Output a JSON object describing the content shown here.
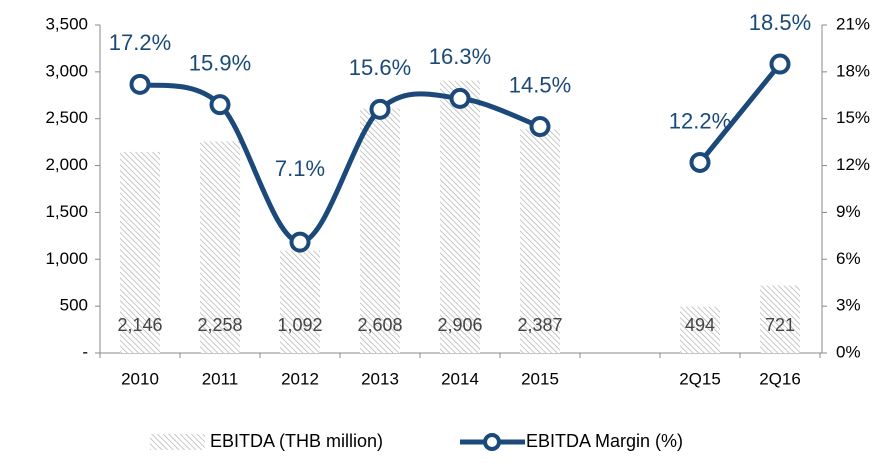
{
  "chart_data": {
    "type": "bar-line",
    "categories": [
      "2010",
      "2011",
      "2012",
      "2013",
      "2014",
      "2015",
      null,
      "2Q15",
      "2Q16"
    ],
    "series": [
      {
        "name": "EBITDA (THB million)",
        "type": "bar",
        "color": "#b0b0b0",
        "values": [
          2146,
          2258,
          1092,
          2608,
          2906,
          2387,
          null,
          494,
          721
        ],
        "value_labels": [
          "2,146",
          "2,258",
          "1,092",
          "2,608",
          "2,906",
          "2,387",
          null,
          "494",
          "721"
        ]
      },
      {
        "name": "EBITDA Margin (%)",
        "type": "line",
        "axis": "y2",
        "color": "#1b4a7a",
        "values": [
          17.2,
          15.9,
          7.1,
          15.6,
          16.3,
          14.5,
          null,
          12.2,
          18.5
        ],
        "value_labels": [
          "17.2%",
          "15.9%",
          "7.1%",
          "15.6%",
          "16.3%",
          "14.5%",
          null,
          "12.2%",
          "18.5%"
        ]
      }
    ],
    "ylim": [
      0,
      3500
    ],
    "yticks": [
      {
        "value": 0,
        "label": "-"
      },
      500,
      {
        "value": 1000,
        "label": "1,000"
      },
      {
        "value": 1500,
        "label": "1,500"
      },
      {
        "value": 2000,
        "label": "2,000"
      },
      {
        "value": 2500,
        "label": "2,500"
      },
      {
        "value": 3000,
        "label": "3,000"
      },
      {
        "value": 3500,
        "label": "3,500"
      }
    ],
    "y2lim": [
      0,
      21
    ],
    "y2ticks": [
      {
        "value": 0,
        "label": "0%"
      },
      {
        "value": 3,
        "label": "3%"
      },
      {
        "value": 6,
        "label": "6%"
      },
      {
        "value": 9,
        "label": "9%"
      },
      {
        "value": 12,
        "label": "12%"
      },
      {
        "value": 15,
        "label": "15%"
      },
      {
        "value": 18,
        "label": "18%"
      },
      {
        "value": 21,
        "label": "21%"
      }
    ],
    "legend": "bottom"
  }
}
